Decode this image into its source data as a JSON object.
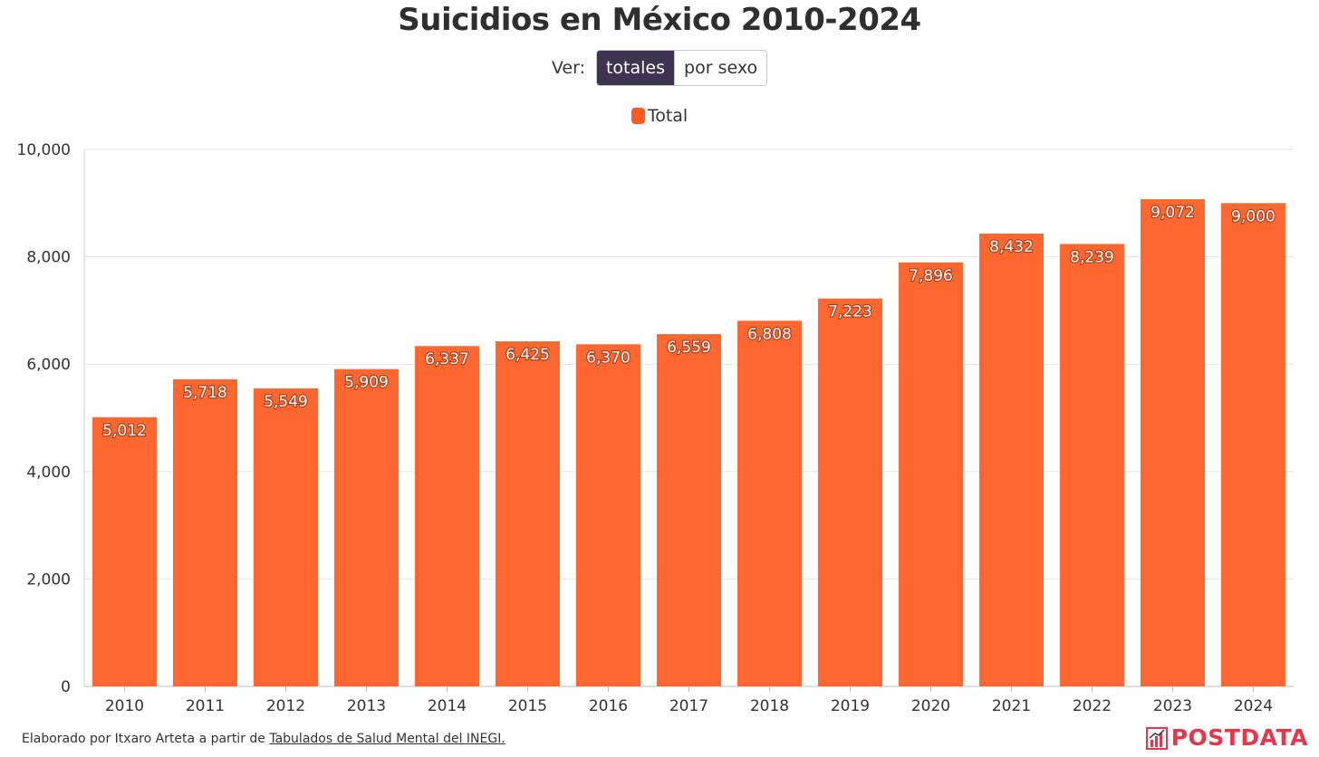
{
  "header": {
    "title": "Suicidios en México 2010-2024",
    "view_label": "Ver:",
    "view_options": [
      "totales",
      "por sexo"
    ],
    "view_selected": "totales"
  },
  "legend": {
    "label": "Total"
  },
  "colors": {
    "bar": "#ff5a1f",
    "active_toggle": "#3d3452",
    "brand": "#e8354a"
  },
  "chart_data": {
    "type": "bar",
    "title": "Suicidios en México 2010-2024",
    "categories": [
      "2010",
      "2011",
      "2012",
      "2013",
      "2014",
      "2015",
      "2016",
      "2017",
      "2018",
      "2019",
      "2020",
      "2021",
      "2022",
      "2023",
      "2024"
    ],
    "series": [
      {
        "name": "Total",
        "values": [
          5012,
          5718,
          5549,
          5909,
          6337,
          6425,
          6370,
          6559,
          6808,
          7223,
          7896,
          8432,
          8239,
          9072,
          9000
        ]
      }
    ],
    "data_labels": [
      "5,012",
      "5,718",
      "5,549",
      "5,909",
      "6,337",
      "6,425",
      "6,370",
      "6,559",
      "6,808",
      "7,223",
      "7,896",
      "8,432",
      "8,239",
      "9,072",
      "9,000"
    ],
    "ylim": [
      0,
      10000
    ],
    "yticks": [
      0,
      2000,
      4000,
      6000,
      8000,
      10000
    ],
    "ytick_labels": [
      "0",
      "2,000",
      "4,000",
      "6,000",
      "8,000",
      "10,000"
    ],
    "grid": true,
    "xlabel": "",
    "ylabel": "",
    "legend_position": "top-center"
  },
  "footer": {
    "prefix": "Elaborado por Itxaro Arteta a partir de ",
    "link_text": "Tabulados de Salud Mental del INEGI.",
    "logo_text": "POSTDATA",
    "logo_icon": "bar-chart-icon"
  }
}
